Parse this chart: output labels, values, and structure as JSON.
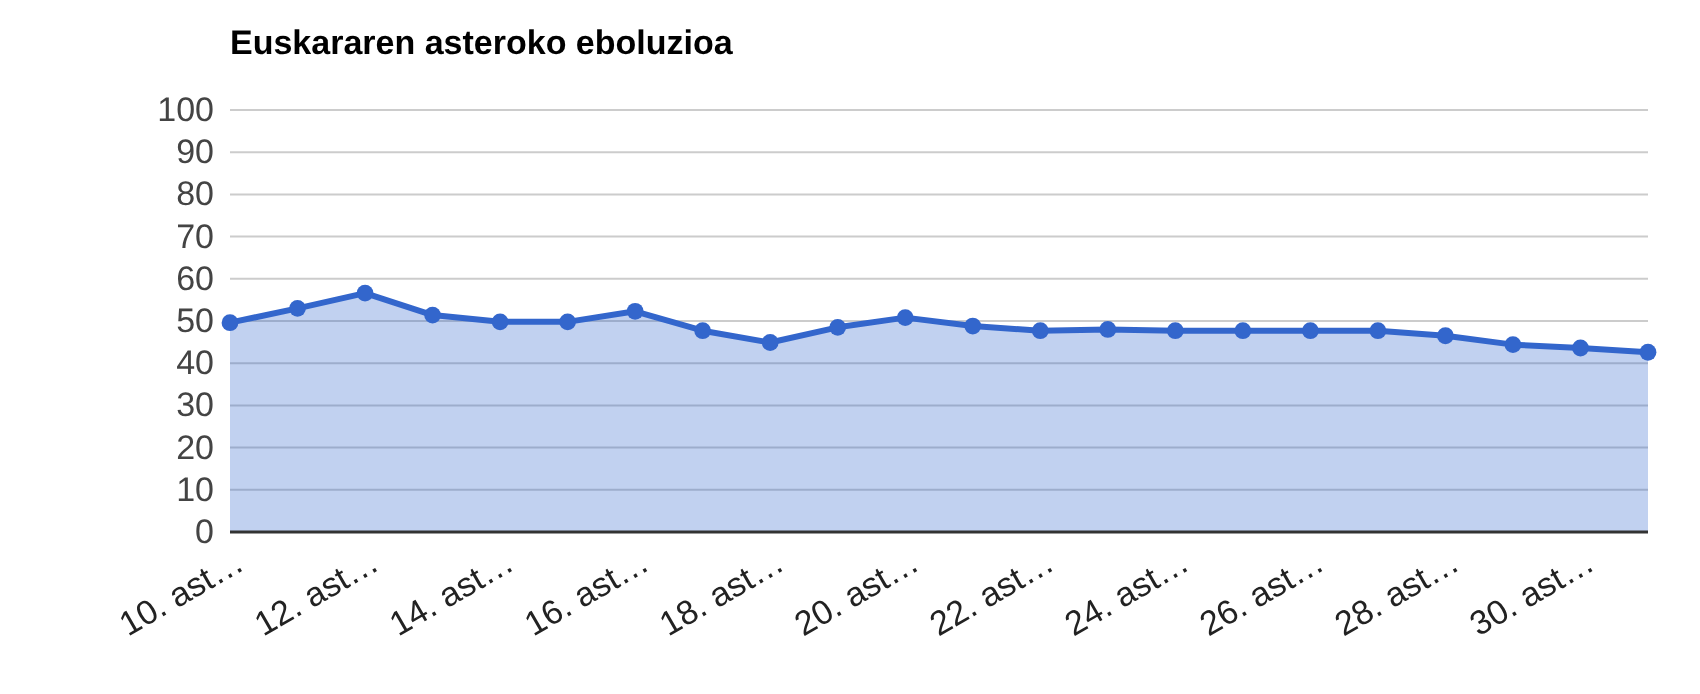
{
  "chart_data": {
    "type": "area",
    "title": "Euskararen asteroko eboluzioa",
    "categories": [
      "10. ast…",
      null,
      "12. ast…",
      null,
      "14. ast…",
      null,
      "16. ast…",
      null,
      "18. ast…",
      null,
      "20. ast…",
      null,
      "22. ast…",
      null,
      "24. ast…",
      null,
      "26. ast…",
      null,
      "28. ast…",
      null,
      "30. ast…",
      null
    ],
    "series": [
      {
        "color": "#3366cc",
        "values": [
          49.6,
          53.0,
          56.6,
          51.4,
          49.8,
          49.8,
          52.3,
          47.7,
          44.9,
          48.5,
          50.8,
          48.8,
          47.7,
          48.0,
          47.7,
          47.7,
          47.7,
          47.7,
          46.5,
          44.4,
          43.6,
          42.6
        ]
      }
    ],
    "ylim": [
      0,
      100
    ],
    "yticks": [
      0,
      10,
      20,
      30,
      40,
      50,
      60,
      70,
      80,
      90,
      100
    ],
    "grid": "y",
    "marker": "circle"
  }
}
